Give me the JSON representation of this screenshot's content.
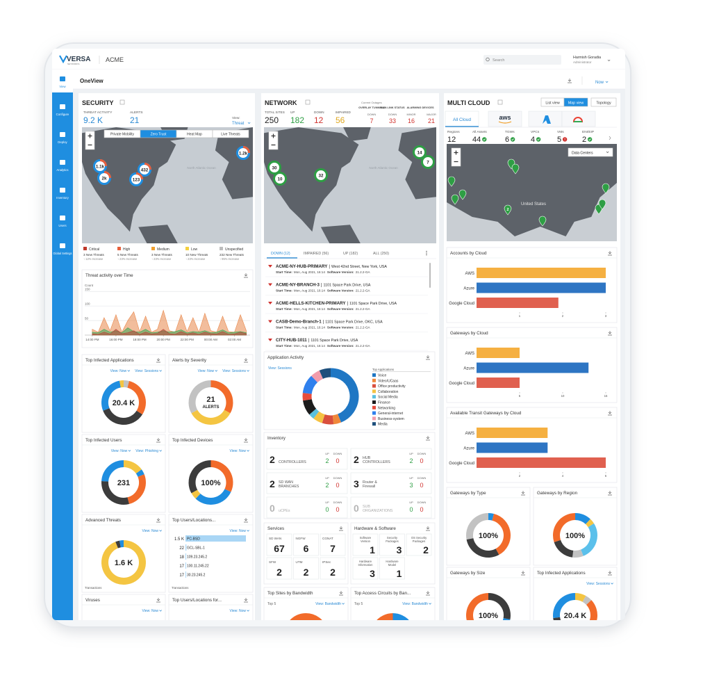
{
  "header": {
    "brand": "VERSA",
    "brand_sub": "NETWORKS",
    "tenant": "ACME",
    "search": "Search",
    "user": "Harmish Goradia",
    "role": "Administrator"
  },
  "sidebar": [
    "View",
    "Configure",
    "Deploy",
    "Analytics",
    "Inventory",
    "Users",
    "Global Settings"
  ],
  "toolbar": {
    "title": "OneView",
    "time": "Now"
  },
  "security": {
    "title": "SECURITY",
    "stats": [
      {
        "label": "THREAT ACTIVITY",
        "value": "9.2 K"
      },
      {
        "label": "ALERTS",
        "value": "21"
      }
    ],
    "view": {
      "label": "View:",
      "value": "Threat"
    },
    "map_tabs": [
      "Private Mobility",
      "Zero Trust",
      "Heat Map",
      "Live Threats"
    ],
    "map_clusters": [
      "1.1k",
      "2k",
      "432",
      "123",
      "1.2k"
    ],
    "map_label": "North Atlantic Ocean",
    "severity": [
      {
        "name": "Critical",
        "count": "3 New Threats",
        "change": "↑ 12% Increase",
        "color": "#c0392b"
      },
      {
        "name": "High",
        "count": "5 New Threats",
        "change": "↑ 23% Increase",
        "color": "#e8603c"
      },
      {
        "name": "Medium",
        "count": "3 New Threats",
        "change": "↑ 23% Increase",
        "color": "#f0a030"
      },
      {
        "name": "Low",
        "count": "10 New Threats",
        "change": "↑ 23% Increase",
        "color": "#f4d03f"
      },
      {
        "name": "Unspecified",
        "count": "232 New Threats",
        "change": "↑ 95% Increase",
        "color": "#bdbdbd"
      }
    ],
    "threat_chart": {
      "type": "area",
      "title": "Threat activity over Time",
      "y_label": "Count",
      "x": [
        0,
        0.5,
        1,
        1.5,
        2,
        2.5,
        3,
        3.5,
        4,
        4.5,
        5,
        5.5,
        6,
        6.5,
        7,
        7.5,
        8,
        8.5,
        9,
        9.5,
        10,
        10.5,
        11,
        11.5,
        12,
        12.5,
        13
      ],
      "xlim": [
        -0.4,
        13.2
      ],
      "xticks": [
        {
          "value": 0,
          "label": "14:00 PM"
        },
        {
          "value": 2,
          "label": "16:00 PM"
        },
        {
          "value": 4,
          "label": "18:00 PM"
        },
        {
          "value": 6,
          "label": "20:00 PM"
        },
        {
          "value": 8,
          "label": "22:00 PM"
        },
        {
          "value": 10,
          "label": "00:00 AM"
        },
        {
          "value": 12,
          "label": "02:00 AM"
        }
      ],
      "ylim": [
        0,
        160
      ],
      "yticks": [
        50,
        100,
        150
      ],
      "grid": true,
      "series": [
        {
          "color": "#e8874a",
          "values": [
            20,
            10,
            60,
            15,
            70,
            10,
            50,
            80,
            12,
            65,
            10,
            20,
            85,
            15,
            10,
            70,
            12,
            60,
            10,
            75,
            15,
            10,
            65,
            12,
            10,
            70,
            15
          ]
        },
        {
          "color": "#3aa655",
          "values": [
            10,
            8,
            20,
            10,
            15,
            8,
            25,
            12,
            10,
            20,
            8,
            10,
            15,
            10,
            12,
            18,
            8,
            12,
            10,
            15,
            8,
            10,
            18,
            8,
            10,
            12,
            8
          ]
        },
        {
          "color": "#b8453a",
          "values": [
            5,
            3,
            10,
            4,
            20,
            5,
            8,
            15,
            3,
            10,
            4,
            6,
            20,
            5,
            3,
            12,
            4,
            8,
            3,
            10,
            5,
            4,
            12,
            3,
            4,
            10,
            5
          ]
        }
      ]
    },
    "widgets": [
      {
        "title": "Top Infected Applications",
        "views": [
          "View: Now",
          "View: Sessions"
        ],
        "center": "20.4 K",
        "segments": [
          {
            "color": "#c2c2c2",
            "value": 4
          },
          {
            "color": "#f26b2a",
            "value": 30
          },
          {
            "color": "#3c3c3c",
            "value": 35
          },
          {
            "color": "#1f8ee0",
            "value": 28
          },
          {
            "color": "#f4c542",
            "value": 3
          }
        ]
      },
      {
        "title": "Alerts by Severity",
        "views": [
          "View: Now",
          "View: Sessions"
        ],
        "center": "21",
        "center_sub": "ALERTS",
        "segments": [
          {
            "color": "#f26b2a",
            "value": 33
          },
          {
            "color": "#f4c542",
            "value": 34
          },
          {
            "color": "#c2c2c2",
            "value": 33
          }
        ]
      },
      {
        "title": "Top Infected Users",
        "views": [
          "View: Now",
          "View: Phishing"
        ],
        "center": "231",
        "segments": [
          {
            "color": "#f4c542",
            "value": 15
          },
          {
            "color": "#1f8ee0",
            "value": 4
          },
          {
            "color": "#f26b2a",
            "value": 27
          },
          {
            "color": "#3c3c3c",
            "value": 30
          },
          {
            "color": "#1f8ee0",
            "value": 24
          }
        ]
      },
      {
        "title": "Top Infected Devices",
        "views": [
          "View: Now"
        ],
        "center": "100%",
        "segments": [
          {
            "color": "#f26b2a",
            "value": 32
          },
          {
            "color": "#1f8ee0",
            "value": 30
          },
          {
            "color": "#f4c542",
            "value": 5
          },
          {
            "color": "#3c3c3c",
            "value": 33
          }
        ]
      },
      {
        "title": "Advanced Threats",
        "views": [
          "View: Now"
        ],
        "center": "1.6 K",
        "footer": "Transactions",
        "segments": [
          {
            "color": "#f4c542",
            "value": 94
          },
          {
            "color": "#3c3c3c",
            "value": 3
          },
          {
            "color": "#1f8ee0",
            "value": 3
          }
        ]
      },
      {
        "title": "Top Users/Locations...",
        "views": [
          "View: Now"
        ],
        "footer": "Transactions",
        "bars": {
          "labels": [
            "PC-BSD",
            "GCL-SBL-1",
            "109.23.245.2",
            "100.11.245.22",
            "30.23.245.2"
          ],
          "values": [
            1500,
            22,
            18,
            17,
            17
          ],
          "value_labels": [
            "1.5 K",
            "22",
            "18",
            "17",
            "17"
          ],
          "color": "#a9d6f5"
        }
      },
      {
        "title": "Viruses",
        "views": [
          "View: Now"
        ],
        "segments": [
          {
            "color": "#f26b2a",
            "value": 25
          },
          {
            "color": "#1f8ee0",
            "value": 50
          },
          {
            "color": "#f26b2a",
            "value": 25
          }
        ]
      },
      {
        "title": "Top Users/Locations for...",
        "views": [
          "View: Now"
        ]
      }
    ]
  },
  "network": {
    "title": "NETWORK",
    "stats": [
      {
        "label": "TOTAL SITES",
        "value": 250,
        "color": "#222222"
      },
      {
        "label": "UP",
        "value": 182,
        "color": "#2e9e44"
      },
      {
        "label": "DOWN",
        "value": 12,
        "color": "#d0312d"
      },
      {
        "label": "IMPAIRED",
        "value": 56,
        "color": "#e0a820"
      }
    ],
    "outages": {
      "title": "Current Outages",
      "groups": [
        {
          "label": "OVERLAY TUNNELS",
          "cols": [
            {
              "sub": "DOWN",
              "value": 7
            }
          ]
        },
        {
          "label": "WAN LINK STATUS",
          "cols": [
            {
              "sub": "DOWN",
              "value": 33
            }
          ]
        },
        {
          "label": "ALARMING DEVICES",
          "cols": [
            {
              "sub": "MINOR",
              "value": 16
            },
            {
              "sub": "MAJOR",
              "value": 21
            }
          ]
        }
      ]
    },
    "map_clusters": [
      "30",
      "10",
      "32",
      "14",
      "7"
    ],
    "map_label": "North Atlantic Ocean",
    "tabs": [
      "DOWN (12)",
      "IMPAIRED (56)",
      "UP (182)",
      "ALL (250)"
    ],
    "separator": "|",
    "site_fields": {
      "start": "Start Time:",
      "version": "Software Version:"
    },
    "sites": [
      {
        "name": "ACME-NY-HUB-PRIMARY",
        "address": "West 42nd Street, New York, USA",
        "start": "Mon, Aug 2021, 16:14",
        "version": "21.2.2-GA"
      },
      {
        "name": "ACME-NY-BRANCH-3",
        "address": "1101 Space Park Drive, USA",
        "start": "Mon, Aug 2021, 16:14",
        "version": "21.2.2-GA"
      },
      {
        "name": "ACME-HELLS-KITCHEN-PRIMARY",
        "address": "1101 Space Park Drive, USA",
        "start": "Mon, Aug 2021, 16:14",
        "version": "21.2.2-GA"
      },
      {
        "name": "CASB-Demo-Branch-1",
        "address": "1101 Space Park Drive, OKC, USA",
        "start": "Mon, Aug 2021, 16:14",
        "version": "21.2.2-GA"
      },
      {
        "name": "CITY-HUB-1011",
        "address": "1101 Space Park Drive, USA",
        "start": "Mon, Aug 2021, 16:14",
        "version": "21.2.2-GA"
      }
    ],
    "app_activity": {
      "title": "Application Activity",
      "view": "View: Sessions",
      "legend_title": "Top Applications",
      "items": [
        {
          "name": "Voice",
          "color": "#1f77c4",
          "value": 40
        },
        {
          "name": "Video/UCaas",
          "color": "#f0883a",
          "value": 4
        },
        {
          "name": "Office productivity",
          "color": "#d94f3d",
          "value": 6
        },
        {
          "name": "Collaboration",
          "color": "#f5c242",
          "value": 5
        },
        {
          "name": "Social Media",
          "color": "#5bc0de",
          "value": 3
        },
        {
          "name": "Finance",
          "color": "#1c1c1c",
          "value": 8
        },
        {
          "name": "Networking",
          "color": "#e74c3c",
          "value": 4
        },
        {
          "name": "General-internet",
          "color": "#2f80ed",
          "value": 10
        },
        {
          "name": "Business-system",
          "color": "#f19cab",
          "value": 5
        },
        {
          "name": "Media",
          "color": "#1d4f7c",
          "value": 6
        }
      ]
    },
    "inventory": {
      "title": "Inventory",
      "up": "UP",
      "down": "DOWN",
      "items": [
        {
          "count": 2,
          "label": [
            "CONTROLLERS"
          ],
          "up": 2,
          "down": 0
        },
        {
          "count": 2,
          "label": [
            "HUB",
            "CONTROLLERS"
          ],
          "up": 2,
          "down": 0
        },
        {
          "count": 2,
          "label": [
            "SD WAN",
            "BRANCHES"
          ],
          "up": 2,
          "down": 0
        },
        {
          "count": 3,
          "label": [
            "Router &",
            "Firewall"
          ],
          "up": 3,
          "down": 0
        },
        {
          "count": 0,
          "label": [
            "uCPEs"
          ],
          "up": 0,
          "down": 0
        },
        {
          "count": 0,
          "label": [
            "SUB",
            "ORGANIZATIONS"
          ],
          "up": 0,
          "down": 0
        }
      ]
    },
    "services": {
      "title": "Services",
      "items": [
        {
          "label": "SD WAN",
          "value": 67
        },
        {
          "label": "NGFW",
          "value": 6
        },
        {
          "label": "CGNAT",
          "value": 7
        },
        {
          "label": "SFW",
          "value": 2
        },
        {
          "label": "UTM",
          "value": 2
        },
        {
          "label": "IPSec",
          "value": 2
        }
      ]
    },
    "hardware": {
      "title": "Hardware & Software",
      "items": [
        {
          "label": [
            "Software",
            "Version"
          ],
          "value": 1
        },
        {
          "label": [
            "Security",
            "Packages"
          ],
          "value": 3
        },
        {
          "label": [
            "OS Security",
            "Packages"
          ],
          "value": 2
        },
        {
          "label": [
            "Hardware",
            "Information"
          ],
          "value": 3
        },
        {
          "label": [
            "Hardware",
            "Model"
          ],
          "value": 1
        }
      ]
    },
    "widgets": [
      {
        "title": "Top Sites by Bandwidth",
        "top": "Top 5",
        "views": [
          "View: Bandwidth"
        ],
        "segments": [
          {
            "color": "#f26b2a",
            "value": 40
          },
          {
            "color": "#1f8ee0",
            "value": 20
          },
          {
            "color": "#3c3c3c",
            "value": 15
          },
          {
            "color": "#f26b2a",
            "value": 25
          }
        ]
      },
      {
        "title": "Top Access Circuits by Ban...",
        "top": "Top 5",
        "views": [
          "View: Bandwidth"
        ],
        "segments": [
          {
            "color": "#1f8ee0",
            "value": 30
          },
          {
            "color": "#3c3c3c",
            "value": 40
          },
          {
            "color": "#f26b2a",
            "value": 30
          }
        ]
      }
    ]
  },
  "multicloud": {
    "title": "MULTI CLOUD",
    "view_tabs": [
      "List view",
      "Map view",
      "Topology"
    ],
    "cloud_tabs": [
      "All Cloud",
      "aws"
    ],
    "stats": [
      {
        "label": "Regions",
        "value": 12
      },
      {
        "label": "All Assets",
        "value": 44,
        "status": "ok"
      },
      {
        "label": "TGWs",
        "value": 6,
        "status": "ok"
      },
      {
        "label": "VPCs",
        "value": 4,
        "status": "ok"
      },
      {
        "label": "VMs",
        "value": 5,
        "status": "alert"
      },
      {
        "label": "ENI/EIP",
        "value": 2,
        "status": "ok"
      }
    ],
    "map_filter": "Data Centers",
    "map_label": "United States",
    "map_cluster": "2",
    "charts": [
      {
        "type": "bar",
        "title": "Accounts by Cloud",
        "categories": [
          "AWS",
          "Azure",
          "Google Cloud"
        ],
        "values": [
          3,
          3,
          1.9
        ],
        "colors": [
          "#f5b041",
          "#2e75c3",
          "#e0604f"
        ],
        "xlim": [
          0,
          3
        ],
        "xticks": [
          1,
          2,
          3
        ]
      },
      {
        "type": "bar",
        "title": "Gateways by Cloud",
        "categories": [
          "AWS",
          "Azure",
          "Google Cloud"
        ],
        "values": [
          5,
          13,
          5
        ],
        "colors": [
          "#f5b041",
          "#2e75c3",
          "#e0604f"
        ],
        "xlim": [
          0,
          15
        ],
        "xticks": [
          5,
          10,
          15
        ]
      },
      {
        "type": "bar",
        "title": "Available Transit Gateways by Cloud",
        "categories": [
          "AWS",
          "Azure",
          "Google Cloud"
        ],
        "values": [
          3.3,
          3.3,
          6
        ],
        "colors": [
          "#f5b041",
          "#2e75c3",
          "#e0604f"
        ],
        "xlim": [
          0,
          6
        ],
        "xticks": [
          2,
          4,
          6
        ]
      }
    ],
    "widgets": [
      {
        "title": "Gateways by Type",
        "center": "100%",
        "segments": [
          {
            "color": "#1f8ee0",
            "value": 4
          },
          {
            "color": "#f26b2a",
            "value": 38
          },
          {
            "color": "#3c3c3c",
            "value": 30
          },
          {
            "color": "#c2c2c2",
            "value": 28
          }
        ]
      },
      {
        "title": "Gateways by Region",
        "center": "100%",
        "segments": [
          {
            "color": "#1f8ee0",
            "value": 12
          },
          {
            "color": "#f4c542",
            "value": 4
          },
          {
            "color": "#5bc0eb",
            "value": 28
          },
          {
            "color": "#c2c2c2",
            "value": 8
          },
          {
            "color": "#3c3c3c",
            "value": 18
          },
          {
            "color": "#f26b2a",
            "value": 30
          }
        ]
      },
      {
        "title": "Gateways by Size",
        "center": "100%",
        "segments": [
          {
            "color": "#3c3c3c",
            "value": 28
          },
          {
            "color": "#1f8ee0",
            "value": 10
          },
          {
            "color": "#f26b2a",
            "value": 62
          }
        ]
      },
      {
        "title": "Top Infected Applications",
        "views": [
          "View: Sessions"
        ],
        "center": "20.4 K",
        "segments": [
          {
            "color": "#f4c542",
            "value": 8
          },
          {
            "color": "#c2c2c2",
            "value": 5
          },
          {
            "color": "#f26b2a",
            "value": 30
          },
          {
            "color": "#3c3c3c",
            "value": 30
          },
          {
            "color": "#1f8ee0",
            "value": 27
          }
        ]
      }
    ]
  }
}
